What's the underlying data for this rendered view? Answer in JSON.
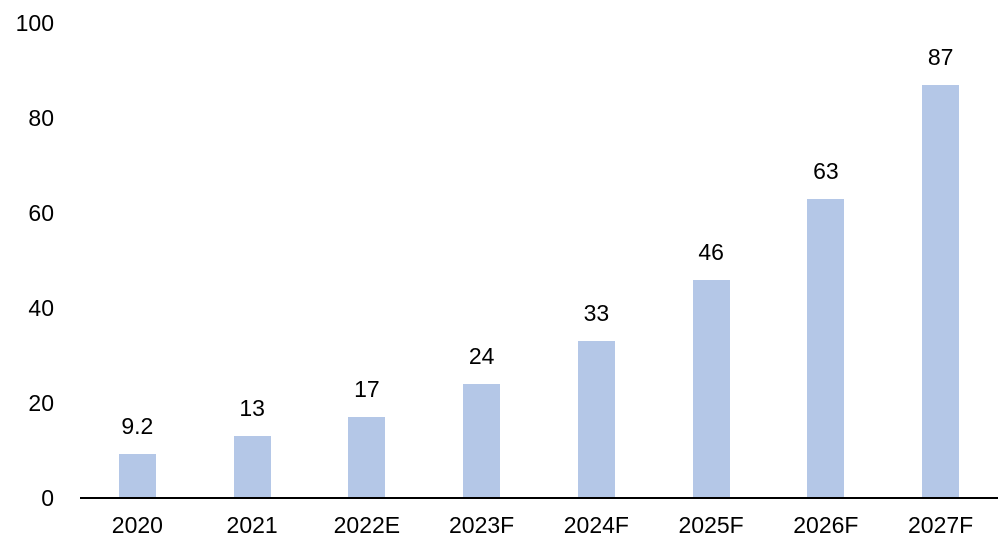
{
  "chart_data": {
    "type": "bar",
    "categories": [
      "2020",
      "2021",
      "2022E",
      "2023F",
      "2024F",
      "2025F",
      "2026F",
      "2027F"
    ],
    "values": [
      9.2,
      13,
      17,
      24,
      33,
      46,
      63,
      87
    ],
    "data_labels": [
      "9.2",
      "13",
      "17",
      "24",
      "33",
      "46",
      "63",
      "87"
    ],
    "title": "",
    "xlabel": "",
    "ylabel": "",
    "ylim": [
      0,
      100
    ],
    "yticks": [
      0,
      20,
      40,
      60,
      80,
      100
    ],
    "grid": false,
    "legend_position": "none",
    "bar_color": "#b4c7e7",
    "axis_line_color": "#000000",
    "text_color": "#000000",
    "background_color": "#ffffff"
  }
}
